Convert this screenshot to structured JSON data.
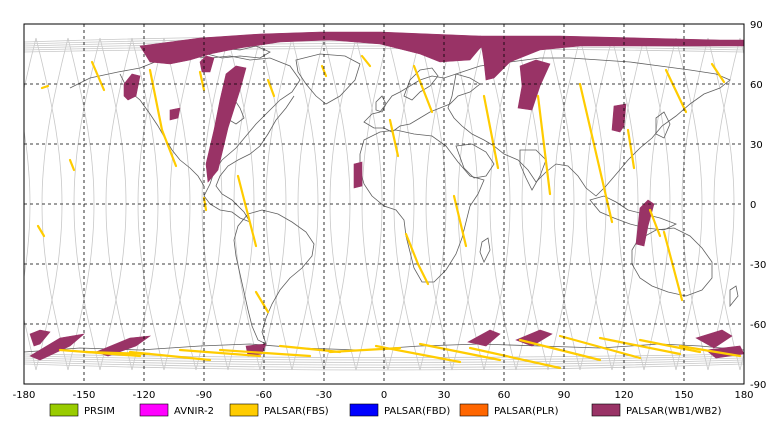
{
  "map": {
    "x_ticks": [
      "-180",
      "-150",
      "-120",
      "-90",
      "-60",
      "-30",
      "0",
      "30",
      "60",
      "90",
      "120",
      "150",
      "180"
    ],
    "y_ticks": [
      "90",
      "60",
      "30",
      "0",
      "-30",
      "-60",
      "-90"
    ],
    "x_range": [
      -180,
      180
    ],
    "y_range": [
      -90,
      90
    ],
    "grid": "dashed"
  },
  "legend": [
    {
      "label": "PRSIM",
      "color": "#99cc00"
    },
    {
      "label": "AVNIR-2",
      "color": "#ff00ff"
    },
    {
      "label": "PALSAR(FBS)",
      "color": "#ffcc00"
    },
    {
      "label": "PALSAR(FBD)",
      "color": "#0000ff"
    },
    {
      "label": "PALSAR(PLR)",
      "color": "#ff6600"
    },
    {
      "label": "PALSAR(WB1/WB2)",
      "color": "#993366"
    }
  ],
  "coverage": {
    "wb_color": "#993366",
    "fbs_color": "#ffcc00",
    "orbit_color": "#c8c8c8",
    "coast_color": "#606060"
  }
}
